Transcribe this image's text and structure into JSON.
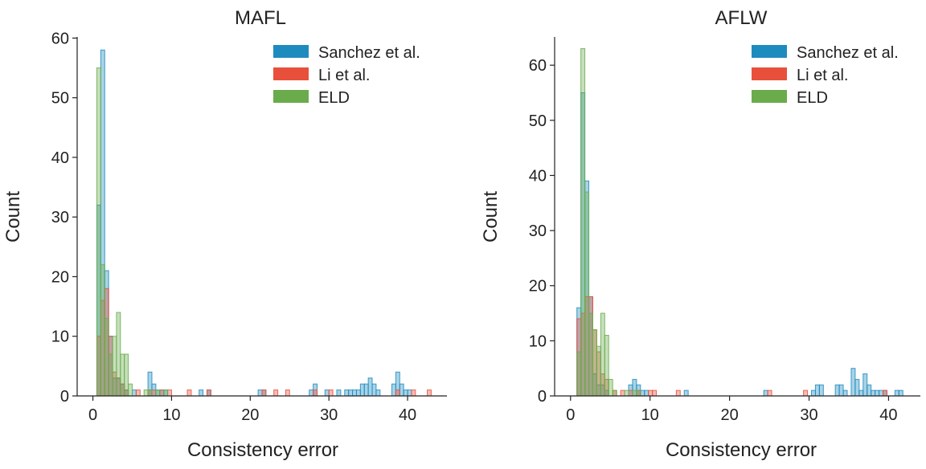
{
  "colors": {
    "sanchez": "#1e8bbf",
    "li": "#e8503c",
    "eld": "#6aab4c"
  },
  "chart_data": [
    {
      "type": "histogram",
      "title": "MAFL",
      "xlabel": "Consistency error",
      "ylabel": "Count",
      "xlim": [
        -2,
        45
      ],
      "ylim": [
        0,
        61
      ],
      "xticks": [
        0,
        10,
        20,
        30,
        40
      ],
      "yticks": [
        0,
        10,
        20,
        30,
        40,
        50,
        60
      ],
      "bin_width": 0.5,
      "legend_position": "top-right",
      "series": [
        {
          "name": "Sanchez et al.",
          "color_key": "sanchez",
          "bins": [
            [
              0.5,
              32
            ],
            [
              1.0,
              58
            ],
            [
              1.5,
              21
            ],
            [
              2.0,
              10
            ],
            [
              2.5,
              3
            ],
            [
              3.0,
              3
            ],
            [
              3.5,
              2
            ],
            [
              4.0,
              1
            ],
            [
              5.0,
              1
            ],
            [
              7.0,
              4
            ],
            [
              7.5,
              2
            ],
            [
              8.0,
              1
            ],
            [
              8.5,
              1
            ],
            [
              9.0,
              1
            ],
            [
              13.5,
              1
            ],
            [
              14.5,
              1
            ],
            [
              21.0,
              1
            ],
            [
              21.5,
              1
            ],
            [
              27.5,
              1
            ],
            [
              28.0,
              2
            ],
            [
              29.5,
              1
            ],
            [
              31.0,
              1
            ],
            [
              32.0,
              1
            ],
            [
              32.5,
              1
            ],
            [
              33.0,
              1
            ],
            [
              33.5,
              1
            ],
            [
              34.0,
              2
            ],
            [
              34.5,
              2
            ],
            [
              35.0,
              3
            ],
            [
              35.5,
              2
            ],
            [
              36.0,
              1
            ],
            [
              38.0,
              2
            ],
            [
              38.5,
              4
            ],
            [
              39.0,
              2
            ],
            [
              39.5,
              1
            ],
            [
              40.0,
              1
            ]
          ]
        },
        {
          "name": "Li et al.",
          "color_key": "li",
          "bins": [
            [
              0.5,
              10
            ],
            [
              1.0,
              16
            ],
            [
              1.5,
              18
            ],
            [
              2.0,
              10
            ],
            [
              2.5,
              4
            ],
            [
              3.0,
              3
            ],
            [
              3.5,
              2
            ],
            [
              4.0,
              1
            ],
            [
              5.5,
              1
            ],
            [
              7.0,
              1
            ],
            [
              7.5,
              1
            ],
            [
              8.5,
              1
            ],
            [
              9.5,
              1
            ],
            [
              12.0,
              1
            ],
            [
              14.5,
              1
            ],
            [
              21.5,
              1
            ],
            [
              23.0,
              1
            ],
            [
              24.5,
              1
            ],
            [
              28.0,
              1
            ],
            [
              30.0,
              1
            ],
            [
              38.5,
              1
            ],
            [
              40.5,
              1
            ],
            [
              42.5,
              1
            ]
          ]
        },
        {
          "name": "ELD",
          "color_key": "eld",
          "bins": [
            [
              0.5,
              55
            ],
            [
              1.0,
              22
            ],
            [
              1.5,
              13
            ],
            [
              2.0,
              7
            ],
            [
              2.5,
              10
            ],
            [
              3.0,
              14
            ],
            [
              3.5,
              7
            ],
            [
              4.0,
              7
            ],
            [
              4.5,
              2
            ],
            [
              6.5,
              1
            ],
            [
              7.0,
              1
            ],
            [
              8.0,
              1
            ],
            [
              9.0,
              1
            ]
          ]
        }
      ]
    },
    {
      "type": "histogram",
      "title": "AFLW",
      "xlabel": "Consistency error",
      "ylabel": "Count",
      "xlim": [
        -2,
        44
      ],
      "ylim": [
        0,
        66
      ],
      "xticks": [
        0,
        10,
        20,
        30,
        40
      ],
      "yticks": [
        0,
        10,
        20,
        30,
        40,
        50,
        60
      ],
      "bin_width": 0.5,
      "legend_position": "top-right",
      "series": [
        {
          "name": "Sanchez et al.",
          "color_key": "sanchez",
          "bins": [
            [
              0.8,
              16
            ],
            [
              1.3,
              55
            ],
            [
              1.8,
              39
            ],
            [
              2.3,
              18
            ],
            [
              2.8,
              4
            ],
            [
              3.3,
              2
            ],
            [
              3.8,
              2
            ],
            [
              4.3,
              1
            ],
            [
              7.3,
              2
            ],
            [
              7.8,
              3
            ],
            [
              8.3,
              2
            ],
            [
              8.8,
              1
            ],
            [
              9.3,
              1
            ],
            [
              14.3,
              1
            ],
            [
              24.3,
              1
            ],
            [
              30.3,
              1
            ],
            [
              30.8,
              2
            ],
            [
              31.3,
              2
            ],
            [
              33.3,
              2
            ],
            [
              33.8,
              2
            ],
            [
              34.3,
              1
            ],
            [
              35.3,
              5
            ],
            [
              35.8,
              3
            ],
            [
              36.3,
              1
            ],
            [
              36.8,
              4
            ],
            [
              37.3,
              2
            ],
            [
              37.8,
              1
            ],
            [
              38.3,
              1
            ],
            [
              38.8,
              1
            ],
            [
              39.3,
              1
            ],
            [
              40.8,
              1
            ],
            [
              41.3,
              1
            ]
          ]
        },
        {
          "name": "Li et al.",
          "color_key": "li",
          "bins": [
            [
              0.8,
              14
            ],
            [
              1.3,
              15
            ],
            [
              1.8,
              18
            ],
            [
              2.3,
              18
            ],
            [
              2.8,
              12
            ],
            [
              3.3,
              8
            ],
            [
              3.8,
              4
            ],
            [
              4.3,
              3
            ],
            [
              5.3,
              1
            ],
            [
              6.3,
              1
            ],
            [
              7.3,
              1
            ],
            [
              8.3,
              1
            ],
            [
              9.8,
              1
            ],
            [
              10.3,
              1
            ],
            [
              13.3,
              1
            ],
            [
              24.8,
              1
            ],
            [
              29.3,
              1
            ],
            [
              39.3,
              1
            ]
          ]
        },
        {
          "name": "ELD",
          "color_key": "eld",
          "bins": [
            [
              0.8,
              8
            ],
            [
              1.3,
              63
            ],
            [
              1.8,
              37
            ],
            [
              2.3,
              15
            ],
            [
              2.8,
              12
            ],
            [
              3.3,
              9
            ],
            [
              3.8,
              15
            ],
            [
              4.3,
              11
            ],
            [
              4.8,
              3
            ],
            [
              5.3,
              1
            ],
            [
              6.8,
              1
            ],
            [
              7.8,
              1
            ],
            [
              8.3,
              1
            ]
          ]
        }
      ]
    }
  ]
}
